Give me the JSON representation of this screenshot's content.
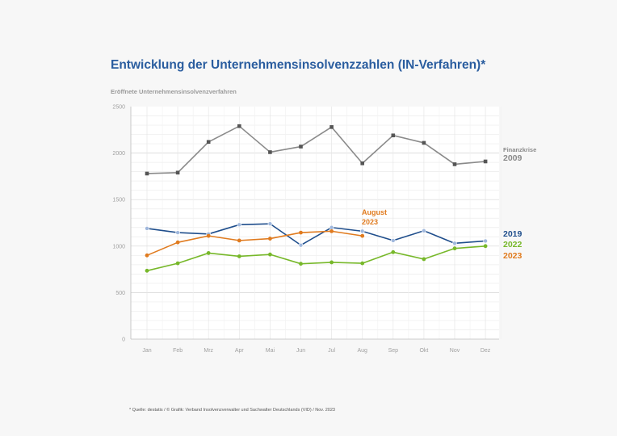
{
  "title": "Entwicklung der Unternehmensinsolvenzzahlen (IN-Verfahren)*",
  "subtitle": "Eröffnete Unternehmensinsolvenzverfahren",
  "source": "* Quelle: destatis / © Grafik: Verband Insolvenzverwalter und Sachwalter Deutschlands (VID) / Nov. 2023",
  "chart_data": {
    "type": "line",
    "categories": [
      "Jan",
      "Feb",
      "Mrz",
      "Apr",
      "Mai",
      "Jun",
      "Jul",
      "Aug",
      "Sep",
      "Okt",
      "Nov",
      "Dez"
    ],
    "ylim": [
      0,
      2500
    ],
    "yticks": [
      0,
      500,
      1000,
      1500,
      2000,
      2500
    ],
    "grid": true,
    "series": [
      {
        "name": "2009",
        "label_lines": [
          "Finanzkrise",
          "2009"
        ],
        "color": "#8a8a8a",
        "marker": "square",
        "values": [
          1780,
          1790,
          2120,
          2290,
          2010,
          2070,
          2280,
          1890,
          2190,
          2110,
          1880,
          1910
        ]
      },
      {
        "name": "2019",
        "label_lines": [
          "2019"
        ],
        "color": "#1f4e8c",
        "marker": "circle-light",
        "values": [
          1190,
          1145,
          1130,
          1230,
          1240,
          1010,
          1200,
          1160,
          1060,
          1165,
          1030,
          1055
        ]
      },
      {
        "name": "2022",
        "label_lines": [
          "2022"
        ],
        "color": "#77b82a",
        "marker": "circle",
        "values": [
          735,
          815,
          925,
          890,
          910,
          810,
          825,
          815,
          935,
          860,
          975,
          1000
        ]
      },
      {
        "name": "2023",
        "label_lines": [
          "2023"
        ],
        "color": "#e07b1f",
        "marker": "circle",
        "values": [
          900,
          1040,
          1110,
          1060,
          1080,
          1145,
          1160,
          1110,
          null,
          null,
          null,
          null
        ]
      }
    ],
    "annotation": {
      "lines": [
        "August",
        "2023"
      ],
      "color": "#e07b1f"
    }
  }
}
